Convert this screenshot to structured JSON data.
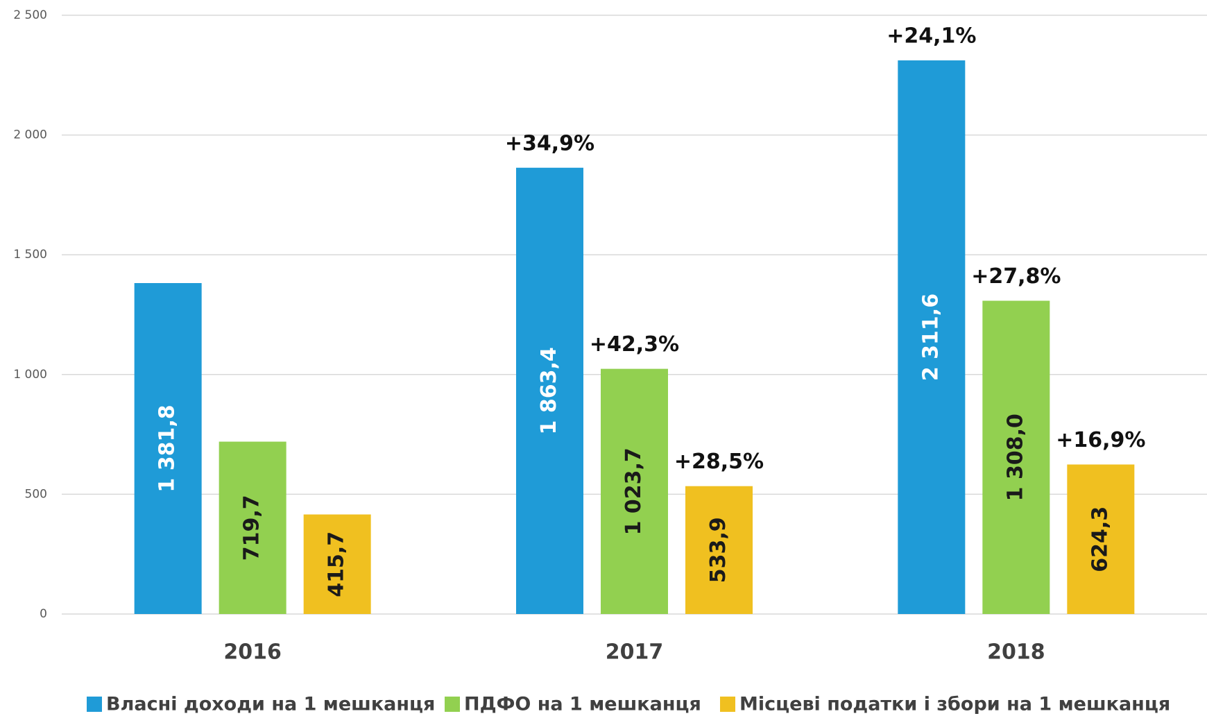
{
  "chart_data": {
    "type": "bar",
    "categories": [
      "2016",
      "2017",
      "2018"
    ],
    "series": [
      {
        "name": "Власні доходи на 1 мешканця",
        "color": "#1f9bd7",
        "label_color": "#ffffff",
        "values": [
          1381.8,
          1863.4,
          2311.6
        ],
        "value_labels": [
          "1 381,8",
          "1 863,4",
          "2 311,6"
        ],
        "growth_labels": [
          null,
          "+34,9%",
          "+24,1%"
        ]
      },
      {
        "name": "ПДФО на 1 мешканця",
        "color": "#92d050",
        "label_color": "#1a1a1a",
        "values": [
          719.7,
          1023.7,
          1308.0
        ],
        "value_labels": [
          "719,7",
          "1 023,7",
          "1 308,0"
        ],
        "growth_labels": [
          null,
          "+42,3%",
          "+27,8%"
        ]
      },
      {
        "name": "Місцеві податки і збори на 1 мешканця",
        "color": "#f0c020",
        "label_color": "#1a1a1a",
        "values": [
          415.7,
          533.9,
          624.3
        ],
        "value_labels": [
          "415,7",
          "533,9",
          "624,3"
        ],
        "growth_labels": [
          null,
          "+28,5%",
          "+16,9%"
        ]
      }
    ],
    "ylim": [
      0,
      2500
    ],
    "yticks": [
      0,
      500,
      {
        "value": 1000,
        "label": "1 000"
      },
      {
        "value": 1500,
        "label": "1 500"
      },
      {
        "value": 2000,
        "label": "2 000"
      },
      {
        "value": 2500,
        "label": "2 500"
      }
    ],
    "grid": true,
    "legend": "bottom"
  }
}
